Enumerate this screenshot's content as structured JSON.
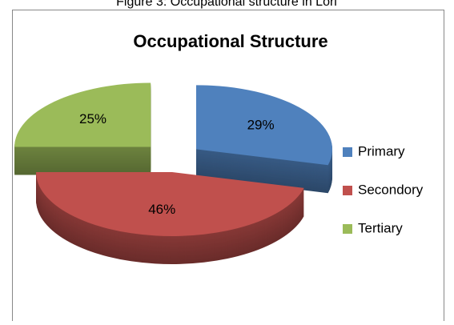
{
  "chart_data": {
    "type": "pie",
    "caption": "Figure 3: Occupational structure in Lori",
    "title": "Occupational Structure",
    "categories": [
      "Primary",
      "Secondory",
      "Tertiary"
    ],
    "values": [
      29,
      46,
      25
    ],
    "value_labels": [
      "29%",
      "46%",
      "25%"
    ],
    "colors": [
      "#4f81bd",
      "#c0504d",
      "#9bbb59"
    ],
    "exploded": [
      true,
      false,
      true
    ],
    "legend": "right"
  }
}
